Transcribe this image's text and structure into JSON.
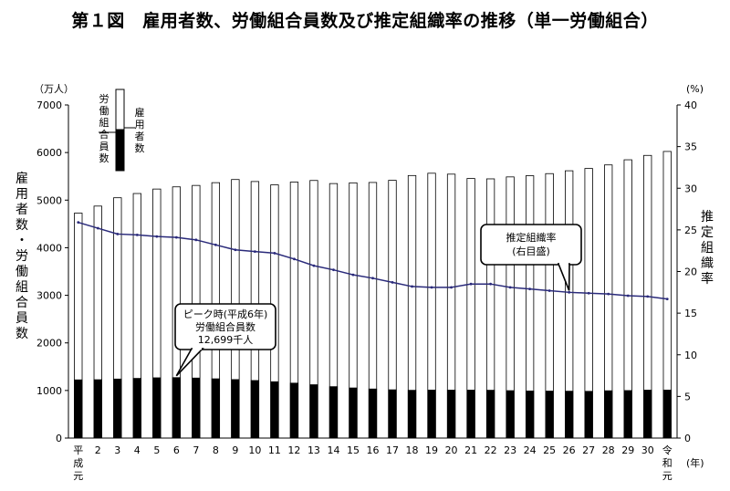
{
  "title": "第１図　雇用者数、労働組合員数及び推定組織率の推移（単一労働組合）",
  "chart_data": {
    "type": "bar",
    "categories": [
      "平成元",
      "2",
      "3",
      "4",
      "5",
      "6",
      "7",
      "8",
      "9",
      "10",
      "11",
      "12",
      "13",
      "14",
      "15",
      "16",
      "17",
      "18",
      "19",
      "20",
      "21",
      "22",
      "23",
      "24",
      "25",
      "26",
      "27",
      "28",
      "29",
      "30",
      "令和元"
    ],
    "series": [
      {
        "name": "雇用者数",
        "type": "bar",
        "axis": "left",
        "values": [
          4727,
          4875,
          5050,
          5139,
          5233,
          5279,
          5309,
          5367,
          5433,
          5391,
          5321,
          5379,
          5413,
          5348,
          5363,
          5371,
          5416,
          5517,
          5565,
          5546,
          5455,
          5447,
          5488,
          5513,
          5557,
          5617,
          5665,
          5740,
          5848,
          5940,
          6023
        ]
      },
      {
        "name": "労働組合員数",
        "type": "bar",
        "axis": "left",
        "values": [
          1223,
          1226,
          1240,
          1254,
          1266,
          1270,
          1261,
          1245,
          1229,
          1209,
          1183,
          1154,
          1121,
          1080,
          1053,
          1031,
          1014,
          1004,
          1008,
          1007,
          1007,
          1005,
          996,
          989,
          987,
          985,
          982,
          994,
          998,
          1007,
          1008
        ]
      },
      {
        "name": "推定組織率",
        "type": "line",
        "axis": "right",
        "values": [
          25.9,
          25.2,
          24.5,
          24.4,
          24.2,
          24.1,
          23.8,
          23.2,
          22.6,
          22.4,
          22.2,
          21.5,
          20.7,
          20.2,
          19.6,
          19.2,
          18.7,
          18.2,
          18.1,
          18.1,
          18.5,
          18.5,
          18.1,
          17.9,
          17.7,
          17.5,
          17.4,
          17.3,
          17.1,
          17.0,
          16.7
        ]
      }
    ],
    "y_left": {
      "min": 0,
      "max": 7000,
      "step": 1000,
      "unit": "（万人）",
      "label": "雇用者数・労働組合員数"
    },
    "y_right": {
      "min": 0,
      "max": 40,
      "step": 5,
      "unit": "(%)",
      "label": "推定組織率"
    },
    "x_unit": "(年)",
    "legend": {
      "upper_label": "雇用者数",
      "lower_label": "労働組合員数"
    },
    "annotations": [
      {
        "lines": [
          "ピーク時(平成6年)",
          "労働組合員数",
          "12,699千人"
        ],
        "target_index": 5
      },
      {
        "lines": [
          "推定組織率",
          "(右目盛)"
        ],
        "target_index": 25
      }
    ],
    "grid": false,
    "colors": {
      "employees": "#ffffff",
      "members": "#000000",
      "line": "#2a2a7a"
    }
  }
}
